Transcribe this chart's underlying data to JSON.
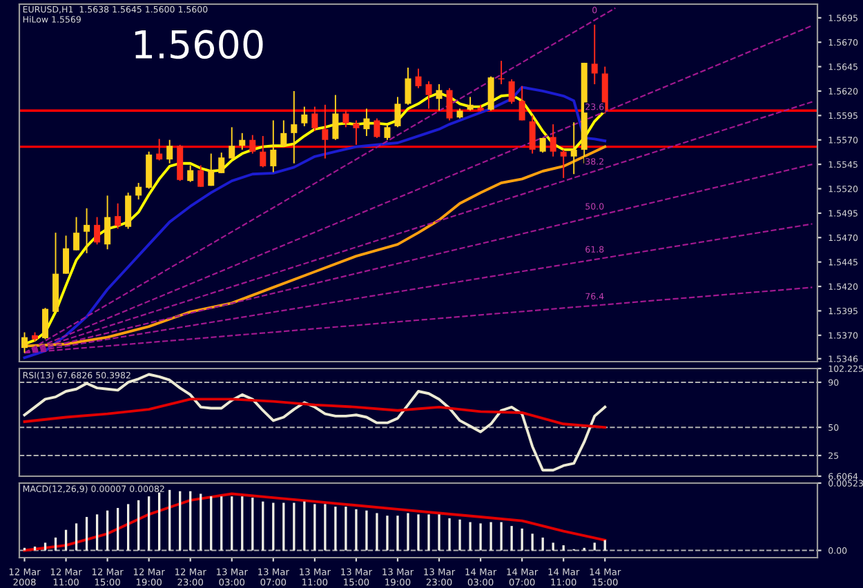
{
  "chart_data": [
    {
      "type": "candlestick",
      "title": "1.5600",
      "annotations": [
        "EURUSD,H1  1.5638 1.5645 1.5600 1.5600",
        "HiLow 1.5569",
        {
          "text": "0",
          "x": "2008-03-14T14:00",
          "y": 1.5693
        },
        {
          "text": "23.6",
          "x": "2008-03-14T14:00",
          "y": 1.5594
        },
        {
          "text": "38.2",
          "x": "2008-03-14T14:00",
          "y": 1.5538
        },
        {
          "text": "50.0",
          "x": "2008-03-14T14:00",
          "y": 1.5492
        },
        {
          "text": "61.8",
          "x": "2008-03-14T14:00",
          "y": 1.5448
        },
        {
          "text": "76.4",
          "x": "2008-03-14T14:00",
          "y": 1.54
        }
      ],
      "x": [
        "2008-03-12T07:00",
        "2008-03-12T08:00",
        "2008-03-12T09:00",
        "2008-03-12T10:00",
        "2008-03-12T11:00",
        "2008-03-12T12:00",
        "2008-03-12T13:00",
        "2008-03-12T14:00",
        "2008-03-12T15:00",
        "2008-03-12T16:00",
        "2008-03-12T17:00",
        "2008-03-12T18:00",
        "2008-03-12T19:00",
        "2008-03-12T20:00",
        "2008-03-12T21:00",
        "2008-03-12T22:00",
        "2008-03-12T23:00",
        "2008-03-13T00:00",
        "2008-03-13T01:00",
        "2008-03-13T02:00",
        "2008-03-13T03:00",
        "2008-03-13T04:00",
        "2008-03-13T05:00",
        "2008-03-13T06:00",
        "2008-03-13T07:00",
        "2008-03-13T08:00",
        "2008-03-13T09:00",
        "2008-03-13T10:00",
        "2008-03-13T11:00",
        "2008-03-13T12:00",
        "2008-03-13T13:00",
        "2008-03-13T14:00",
        "2008-03-13T15:00",
        "2008-03-13T16:00",
        "2008-03-13T17:00",
        "2008-03-13T18:00",
        "2008-03-13T19:00",
        "2008-03-13T20:00",
        "2008-03-13T21:00",
        "2008-03-13T22:00",
        "2008-03-13T23:00",
        "2008-03-14T00:00",
        "2008-03-14T01:00",
        "2008-03-14T02:00",
        "2008-03-14T03:00",
        "2008-03-14T04:00",
        "2008-03-14T05:00",
        "2008-03-14T06:00",
        "2008-03-14T07:00",
        "2008-03-14T08:00",
        "2008-03-14T09:00",
        "2008-03-14T10:00",
        "2008-03-14T11:00",
        "2008-03-14T12:00",
        "2008-03-14T13:00",
        "2008-03-14T14:00",
        "2008-03-14T15:00"
      ],
      "ohlc": [
        [
          1.5357,
          1.5373,
          1.5352,
          1.5368
        ],
        [
          1.537,
          1.5373,
          1.5364,
          1.5366
        ],
        [
          1.5367,
          1.5398,
          1.5366,
          1.5397
        ],
        [
          1.5394,
          1.5475,
          1.5394,
          1.5433
        ],
        [
          1.5433,
          1.5472,
          1.5433,
          1.5459
        ],
        [
          1.5457,
          1.5491,
          1.5457,
          1.5475
        ],
        [
          1.5476,
          1.55,
          1.5454,
          1.5483
        ],
        [
          1.5483,
          1.5491,
          1.5463,
          1.5465
        ],
        [
          1.5463,
          1.5513,
          1.5458,
          1.5491
        ],
        [
          1.5492,
          1.5505,
          1.5479,
          1.5482
        ],
        [
          1.5481,
          1.5516,
          1.5479,
          1.5513
        ],
        [
          1.5513,
          1.5526,
          1.5509,
          1.5522
        ],
        [
          1.5521,
          1.5558,
          1.552,
          1.5555
        ],
        [
          1.5556,
          1.5571,
          1.5549,
          1.555
        ],
        [
          1.555,
          1.557,
          1.5546,
          1.5564
        ],
        [
          1.5564,
          1.5565,
          1.5528,
          1.5529
        ],
        [
          1.5528,
          1.5544,
          1.5527,
          1.5539
        ],
        [
          1.5539,
          1.5544,
          1.5522,
          1.5522
        ],
        [
          1.5523,
          1.5556,
          1.5523,
          1.5539
        ],
        [
          1.5536,
          1.5557,
          1.5536,
          1.5552
        ],
        [
          1.5551,
          1.5583,
          1.5551,
          1.5564
        ],
        [
          1.5564,
          1.5577,
          1.556,
          1.557
        ],
        [
          1.557,
          1.5575,
          1.5556,
          1.5558
        ],
        [
          1.5558,
          1.5574,
          1.5542,
          1.5543
        ],
        [
          1.5543,
          1.559,
          1.5537,
          1.556
        ],
        [
          1.5564,
          1.559,
          1.5563,
          1.5577
        ],
        [
          1.5577,
          1.562,
          1.5546,
          1.5586
        ],
        [
          1.5587,
          1.5604,
          1.5584,
          1.5596
        ],
        [
          1.5597,
          1.5604,
          1.5579,
          1.5582
        ],
        [
          1.5581,
          1.5606,
          1.5551,
          1.557
        ],
        [
          1.5571,
          1.5616,
          1.557,
          1.5597
        ],
        [
          1.5597,
          1.56,
          1.5583,
          1.5587
        ],
        [
          1.5587,
          1.559,
          1.5565,
          1.5582
        ],
        [
          1.5581,
          1.5602,
          1.5574,
          1.5592
        ],
        [
          1.559,
          1.5592,
          1.5572,
          1.5573
        ],
        [
          1.5572,
          1.5586,
          1.557,
          1.5583
        ],
        [
          1.5584,
          1.5614,
          1.5583,
          1.5607
        ],
        [
          1.5607,
          1.5644,
          1.5606,
          1.5633
        ],
        [
          1.5635,
          1.5643,
          1.5623,
          1.5625
        ],
        [
          1.5627,
          1.563,
          1.5602,
          1.5616
        ],
        [
          1.5612,
          1.5627,
          1.56,
          1.5621
        ],
        [
          1.5621,
          1.5623,
          1.559,
          1.5592
        ],
        [
          1.5593,
          1.5602,
          1.5592,
          1.56
        ],
        [
          1.5601,
          1.5614,
          1.56,
          1.5606
        ],
        [
          1.5603,
          1.5606,
          1.5599,
          1.56
        ],
        [
          1.5601,
          1.5635,
          1.56,
          1.5634
        ],
        [
          1.5633,
          1.5651,
          1.5627,
          1.5632
        ],
        [
          1.563,
          1.5632,
          1.5607,
          1.5609
        ],
        [
          1.561,
          1.5625,
          1.559,
          1.559
        ],
        [
          1.5589,
          1.5595,
          1.5556,
          1.556
        ],
        [
          1.5558,
          1.5572,
          1.5557,
          1.5572
        ],
        [
          1.5573,
          1.5586,
          1.5553,
          1.5558
        ],
        [
          1.5558,
          1.556,
          1.5531,
          1.5553
        ],
        [
          1.5553,
          1.5588,
          1.5535,
          1.556
        ],
        [
          1.556,
          1.5649,
          1.5546,
          1.5649
        ],
        [
          1.5648,
          1.5688,
          1.5627,
          1.5638
        ],
        [
          1.5638,
          1.5645,
          1.5597,
          1.56
        ]
      ],
      "colors": [
        "#ffd21e",
        "#ff2a1a",
        "#ffd21e",
        "#ffd21e",
        "#ffd21e",
        "#ffd21e",
        "#ffd21e",
        "#ff2a1a",
        "#ffd21e",
        "#ff2a1a",
        "#ffd21e",
        "#ffd21e",
        "#ffd21e",
        "#ff2a1a",
        "#ffd21e",
        "#ff2a1a",
        "#ffd21e",
        "#ff2a1a",
        "#ffd21e",
        "#ffd21e",
        "#ffd21e",
        "#ffd21e",
        "#ff2a1a",
        "#ff2a1a",
        "#ffd21e",
        "#ffd21e",
        "#ffd21e",
        "#ffd21e",
        "#ff2a1a",
        "#ff2a1a",
        "#ffd21e",
        "#ff2a1a",
        "#ff2a1a",
        "#ffd21e",
        "#ff2a1a",
        "#ffd21e",
        "#ffd21e",
        "#ffd21e",
        "#ff2a1a",
        "#ff2a1a",
        "#ffd21e",
        "#ff2a1a",
        "#ffd21e",
        "#ffd21e",
        "#ff2a1a",
        "#ffd21e",
        "#ff2a1a",
        "#ff2a1a",
        "#ff2a1a",
        "#ff2a1a",
        "#ffd21e",
        "#ff2a1a",
        "#ff2a1a",
        "#ffd21e",
        "#ffd21e",
        "#ff2a1a",
        "#ff2a1a"
      ],
      "series": [
        {
          "type": "line",
          "color": "#ffff00",
          "values": [
            1.5361,
            1.5365,
            1.5373,
            1.5394,
            1.5421,
            1.5447,
            1.5461,
            1.5472,
            1.5479,
            1.5482,
            1.5486,
            1.5496,
            1.5514,
            1.553,
            1.5543,
            1.5546,
            1.5546,
            1.5541,
            1.5538,
            1.5539,
            1.5549,
            1.5556,
            1.556,
            1.5563,
            1.5564,
            1.5564,
            1.5566,
            1.5574,
            1.5581,
            1.5583,
            1.5586,
            1.5587,
            1.5586,
            1.5587,
            1.5587,
            1.5586,
            1.559,
            1.5602,
            1.5607,
            1.5614,
            1.5618,
            1.5614,
            1.5607,
            1.5604,
            1.5604,
            1.5609,
            1.5615,
            1.5616,
            1.561,
            1.5595,
            1.5579,
            1.5566,
            1.556,
            1.556,
            1.5572,
            1.5589,
            1.56
          ]
        },
        {
          "type": "line",
          "color": "#1c1cd0",
          "x": [
            "2008-03-12T07:00",
            "2008-03-12T09:00",
            "2008-03-12T11:00",
            "2008-03-12T13:00",
            "2008-03-12T15:00",
            "2008-03-12T17:00",
            "2008-03-12T19:00",
            "2008-03-12T21:00",
            "2008-03-12T23:00",
            "2008-03-13T01:00",
            "2008-03-13T03:00",
            "2008-03-13T05:00",
            "2008-03-13T07:00",
            "2008-03-13T09:00",
            "2008-03-13T11:00",
            "2008-03-13T13:00",
            "2008-03-13T15:00",
            "2008-03-13T17:00",
            "2008-03-13T19:00",
            "2008-03-13T21:00",
            "2008-03-13T23:00",
            "2008-03-14T00:00",
            "2008-03-14T02:00",
            "2008-03-14T04:00",
            "2008-03-14T06:00",
            "2008-03-14T07:00",
            "2008-03-14T09:00",
            "2008-03-14T11:00",
            "2008-03-14T12:00",
            "2008-03-14T13:00",
            "2008-03-14T14:00",
            "2008-03-14T15:00"
          ],
          "values": [
            1.5347,
            1.5354,
            1.537,
            1.5389,
            1.5417,
            1.544,
            1.5463,
            1.5486,
            1.5502,
            1.5516,
            1.5528,
            1.5535,
            1.5536,
            1.5542,
            1.5553,
            1.5558,
            1.5563,
            1.5565,
            1.5567,
            1.5574,
            1.5581,
            1.5586,
            1.5594,
            1.5602,
            1.5612,
            1.5624,
            1.562,
            1.5615,
            1.561,
            1.5572,
            1.5571,
            1.5569
          ]
        },
        {
          "type": "line",
          "color": "#ffa010",
          "x": [
            "2008-03-12T07:00",
            "2008-03-12T11:00",
            "2008-03-12T15:00",
            "2008-03-12T19:00",
            "2008-03-12T23:00",
            "2008-03-13T03:00",
            "2008-03-13T07:00",
            "2008-03-13T11:00",
            "2008-03-13T15:00",
            "2008-03-13T19:00",
            "2008-03-13T21:00",
            "2008-03-13T23:00",
            "2008-03-14T01:00",
            "2008-03-14T03:00",
            "2008-03-14T05:00",
            "2008-03-14T07:00",
            "2008-03-14T09:00",
            "2008-03-14T11:00",
            "2008-03-14T13:00",
            "2008-03-14T15:00"
          ],
          "values": [
            1.5359,
            1.5361,
            1.5368,
            1.5379,
            1.5394,
            1.5403,
            1.5419,
            1.5435,
            1.5451,
            1.5463,
            1.5475,
            1.5488,
            1.5505,
            1.5516,
            1.5526,
            1.553,
            1.5538,
            1.5543,
            1.5553,
            1.5563
          ]
        },
        {
          "type": "line",
          "color": "#a01890",
          "line_style": "dashed",
          "x": [
            "2008-03-12T07:00",
            "2008-03-14T16:00"
          ],
          "values": [
            1.5352,
            1.5705
          ]
        },
        {
          "type": "line",
          "color": "#a01890",
          "line_style": "dashed",
          "x": [
            "2008-03-12T07:00",
            "2008-03-15T11:00"
          ],
          "values": [
            1.5352,
            1.5687
          ]
        },
        {
          "type": "line",
          "color": "#a01890",
          "line_style": "dashed",
          "x": [
            "2008-03-12T07:00",
            "2008-03-15T11:00"
          ],
          "values": [
            1.5352,
            1.5609
          ]
        },
        {
          "type": "line",
          "color": "#a01890",
          "line_style": "dashed",
          "x": [
            "2008-03-12T07:00",
            "2008-03-15T11:00"
          ],
          "values": [
            1.5352,
            1.5545
          ]
        },
        {
          "type": "line",
          "color": "#a01890",
          "line_style": "dashed",
          "x": [
            "2008-03-12T07:00",
            "2008-03-15T11:00"
          ],
          "values": [
            1.5352,
            1.5484
          ]
        },
        {
          "type": "line",
          "color": "#a01890",
          "line_style": "dashed",
          "x": [
            "2008-03-12T07:00",
            "2008-03-15T11:00"
          ],
          "values": [
            1.5352,
            1.5419
          ]
        }
      ],
      "ref_lines": [
        {
          "axis": "y",
          "value": 1.56,
          "color": "#ff0000"
        },
        {
          "axis": "y",
          "value": 1.5563,
          "color": "#ff0000"
        }
      ],
      "xlim": [
        "2008-03-12T06:30",
        "2008-03-15T11:30"
      ],
      "ylim": [
        1.5343,
        1.5709
      ],
      "yticks": [
        1.5695,
        {
          "value": 1.567,
          "label": "1.5670"
        },
        1.5645,
        {
          "value": 1.562,
          "label": "1.5620"
        },
        1.5595,
        {
          "value": 1.557,
          "label": "1.5570"
        },
        1.5545,
        {
          "value": 1.552,
          "label": "1.5520"
        },
        1.5495,
        {
          "value": 1.547,
          "label": "1.5470"
        },
        1.5445,
        {
          "value": 1.542,
          "label": "1.5420"
        },
        1.5395,
        {
          "value": 1.537,
          "label": "1.5370"
        },
        1.5346
      ],
      "tick_labels": "y"
    },
    {
      "type": "line",
      "title": "RSI(13) 67.6826 50.3982",
      "x": [
        "2008-03-12T07:00",
        "2008-03-12T08:00",
        "2008-03-12T09:00",
        "2008-03-12T10:00",
        "2008-03-12T11:00",
        "2008-03-12T12:00",
        "2008-03-12T13:00",
        "2008-03-12T14:00",
        "2008-03-12T15:00",
        "2008-03-12T16:00",
        "2008-03-12T17:00",
        "2008-03-12T18:00",
        "2008-03-12T19:00",
        "2008-03-12T20:00",
        "2008-03-12T21:00",
        "2008-03-12T22:00",
        "2008-03-12T23:00",
        "2008-03-13T00:00",
        "2008-03-13T01:00",
        "2008-03-13T02:00",
        "2008-03-13T03:00",
        "2008-03-13T04:00",
        "2008-03-13T05:00",
        "2008-03-13T06:00",
        "2008-03-13T07:00",
        "2008-03-13T08:00",
        "2008-03-13T09:00",
        "2008-03-13T10:00",
        "2008-03-13T11:00",
        "2008-03-13T12:00",
        "2008-03-13T13:00",
        "2008-03-13T14:00",
        "2008-03-13T15:00",
        "2008-03-13T16:00",
        "2008-03-13T17:00",
        "2008-03-13T18:00",
        "2008-03-13T19:00",
        "2008-03-13T20:00",
        "2008-03-13T21:00",
        "2008-03-13T22:00",
        "2008-03-13T23:00",
        "2008-03-14T00:00",
        "2008-03-14T01:00",
        "2008-03-14T02:00",
        "2008-03-14T03:00",
        "2008-03-14T04:00",
        "2008-03-14T05:00",
        "2008-03-14T06:00",
        "2008-03-14T07:00",
        "2008-03-14T08:00",
        "2008-03-14T09:00",
        "2008-03-14T10:00",
        "2008-03-14T11:00",
        "2008-03-14T12:00",
        "2008-03-14T13:00",
        "2008-03-14T14:00",
        "2008-03-14T15:00"
      ],
      "series": [
        {
          "color": "#ecead4",
          "values": [
            61,
            68,
            75,
            77,
            82,
            84,
            89,
            85,
            84,
            83,
            90,
            93,
            97,
            95,
            92,
            85,
            79,
            68,
            67,
            67,
            74,
            79,
            75,
            65,
            56,
            59,
            66,
            72,
            68,
            62,
            60,
            60,
            61,
            59,
            54,
            54,
            58,
            70,
            82,
            80,
            75,
            67,
            56,
            51,
            46,
            53,
            65,
            68,
            62,
            33,
            12,
            12,
            16,
            18,
            37,
            60,
            68
          ]
        },
        {
          "color": "#e00000",
          "x": [
            "2008-03-12T07:00",
            "2008-03-12T11:00",
            "2008-03-12T15:00",
            "2008-03-12T19:00",
            "2008-03-12T23:00",
            "2008-03-13T03:00",
            "2008-03-13T07:00",
            "2008-03-13T11:00",
            "2008-03-13T15:00",
            "2008-03-13T19:00",
            "2008-03-13T23:00",
            "2008-03-14T03:00",
            "2008-03-14T07:00",
            "2008-03-14T11:00",
            "2008-03-14T15:00"
          ],
          "values": [
            55,
            59,
            62,
            66,
            75,
            75,
            73,
            70,
            68,
            65,
            68,
            64,
            63,
            53,
            50
          ]
        }
      ],
      "ref_lines": [
        {
          "axis": "y",
          "value": 90,
          "color": "#b0b0b0",
          "line_style": "dashed"
        },
        {
          "axis": "y",
          "value": 50,
          "color": "#b0b0b0",
          "line_style": "dashed"
        },
        {
          "axis": "y",
          "value": 25,
          "color": "#b0b0b0",
          "line_style": "dashed"
        }
      ],
      "xlim": [
        "2008-03-12T06:30",
        "2008-03-15T11:30"
      ],
      "ylim": [
        6.6064,
        102.225
      ],
      "yticks": [
        102.225,
        90,
        50,
        25,
        6.6064
      ],
      "tick_labels": "y"
    },
    {
      "type": "bar",
      "title": "MACD(12,26,9) 0.00007 0.00082",
      "x": [
        "2008-03-12T07:00",
        "2008-03-12T08:00",
        "2008-03-12T09:00",
        "2008-03-12T10:00",
        "2008-03-12T11:00",
        "2008-03-12T12:00",
        "2008-03-12T13:00",
        "2008-03-12T14:00",
        "2008-03-12T15:00",
        "2008-03-12T16:00",
        "2008-03-12T17:00",
        "2008-03-12T18:00",
        "2008-03-12T19:00",
        "2008-03-12T20:00",
        "2008-03-12T21:00",
        "2008-03-12T22:00",
        "2008-03-12T23:00",
        "2008-03-13T00:00",
        "2008-03-13T01:00",
        "2008-03-13T02:00",
        "2008-03-13T03:00",
        "2008-03-13T04:00",
        "2008-03-13T05:00",
        "2008-03-13T06:00",
        "2008-03-13T07:00",
        "2008-03-13T08:00",
        "2008-03-13T09:00",
        "2008-03-13T10:00",
        "2008-03-13T11:00",
        "2008-03-13T12:00",
        "2008-03-13T13:00",
        "2008-03-13T14:00",
        "2008-03-13T15:00",
        "2008-03-13T16:00",
        "2008-03-13T17:00",
        "2008-03-13T18:00",
        "2008-03-13T19:00",
        "2008-03-13T20:00",
        "2008-03-13T21:00",
        "2008-03-13T22:00",
        "2008-03-13T23:00",
        "2008-03-14T00:00",
        "2008-03-14T01:00",
        "2008-03-14T02:00",
        "2008-03-14T03:00",
        "2008-03-14T04:00",
        "2008-03-14T05:00",
        "2008-03-14T06:00",
        "2008-03-14T07:00",
        "2008-03-14T08:00",
        "2008-03-14T09:00",
        "2008-03-14T10:00",
        "2008-03-14T11:00",
        "2008-03-14T12:00",
        "2008-03-14T13:00",
        "2008-03-14T14:00",
        "2008-03-14T15:00"
      ],
      "series": [
        {
          "type": "bar",
          "color": "#f0f0e6",
          "values": [
            0.0002,
            0.0003,
            0.0006,
            0.001,
            0.0016,
            0.0021,
            0.0026,
            0.0028,
            0.0031,
            0.0033,
            0.0036,
            0.0039,
            0.0042,
            0.0045,
            0.0047,
            0.0046,
            0.0046,
            0.0044,
            0.0042,
            0.0042,
            0.0042,
            0.0042,
            0.0041,
            0.0038,
            0.0037,
            0.0037,
            0.0037,
            0.0038,
            0.0036,
            0.0036,
            0.0034,
            0.0034,
            0.0032,
            0.0031,
            0.0029,
            0.0027,
            0.0027,
            0.0029,
            0.0028,
            0.0028,
            0.0028,
            0.0025,
            0.0024,
            0.0022,
            0.0021,
            0.0022,
            0.0022,
            0.0019,
            0.0017,
            0.0013,
            0.001,
            0.0006,
            0.0004,
            0.0001,
            0.0002,
            0.0006,
            0.0008
          ]
        },
        {
          "type": "line",
          "color": "#e00000",
          "x": [
            "2008-03-12T07:00",
            "2008-03-12T11:00",
            "2008-03-12T15:00",
            "2008-03-12T19:00",
            "2008-03-12T23:00",
            "2008-03-13T03:00",
            "2008-03-13T07:00",
            "2008-03-13T11:00",
            "2008-03-13T15:00",
            "2008-03-13T19:00",
            "2008-03-13T23:00",
            "2008-03-14T03:00",
            "2008-03-14T07:00",
            "2008-03-14T11:00",
            "2008-03-14T15:00"
          ],
          "values": [
            0.0,
            0.0004,
            0.0013,
            0.0028,
            0.0039,
            0.0044,
            0.0041,
            0.0038,
            0.0035,
            0.0032,
            0.0029,
            0.0026,
            0.0023,
            0.0015,
            0.0008
          ]
        }
      ],
      "ref_lines": [
        {
          "axis": "y",
          "value": 0,
          "color": "#b0b0b0",
          "line_style": "dashed"
        }
      ],
      "xlim": [
        "2008-03-12T06:30",
        "2008-03-15T11:30"
      ],
      "xticks": [
        {
          "value": "2008-03-12T07:00",
          "label": "12 Mar 2008"
        },
        {
          "value": "2008-03-12T11:00",
          "label": "12 Mar 11:00"
        },
        {
          "value": "2008-03-12T15:00",
          "label": "12 Mar 15:00"
        },
        {
          "value": "2008-03-12T19:00",
          "label": "12 Mar 19:00"
        },
        {
          "value": "2008-03-12T23:00",
          "label": "12 Mar 23:00"
        },
        {
          "value": "2008-03-13T03:00",
          "label": "13 Mar 03:00"
        },
        {
          "value": "2008-03-13T07:00",
          "label": "13 Mar 07:00"
        },
        {
          "value": "2008-03-13T11:00",
          "label": "13 Mar 11:00"
        },
        {
          "value": "2008-03-13T15:00",
          "label": "13 Mar 15:00"
        },
        {
          "value": "2008-03-13T19:00",
          "label": "13 Mar 19:00"
        },
        {
          "value": "2008-03-13T23:00",
          "label": "13 Mar 23:00"
        },
        {
          "value": "2008-03-14T03:00",
          "label": "14 Mar 03:00"
        },
        {
          "value": "2008-03-14T07:00",
          "label": "14 Mar 07:00"
        },
        {
          "value": "2008-03-14T11:00",
          "label": "14 Mar 11:00"
        },
        {
          "value": "2008-03-14T15:00",
          "label": "14 Mar 15:00"
        }
      ],
      "ylim": [
        -0.00056,
        0.00523
      ],
      "yticks": [
        0.00523,
        {
          "value": 0,
          "label": "0.00"
        }
      ]
    }
  ]
}
